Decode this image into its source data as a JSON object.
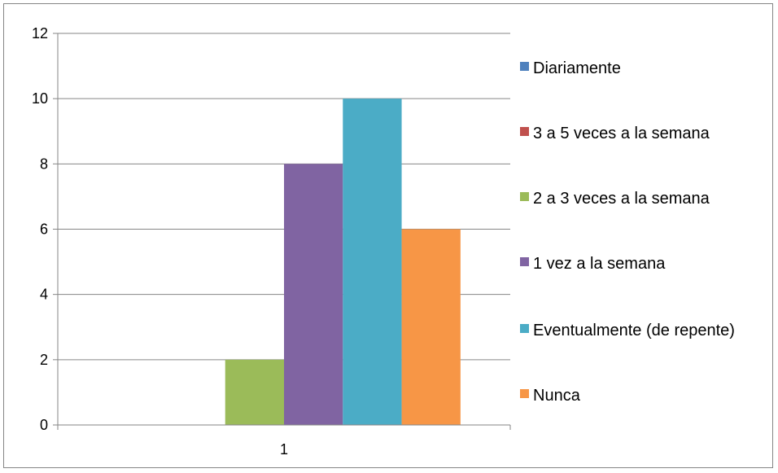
{
  "chart_data": {
    "type": "bar",
    "title": "",
    "xlabel": "",
    "ylabel": "",
    "categories": [
      "1"
    ],
    "ylim": [
      0,
      12
    ],
    "yticks": [
      0,
      2,
      4,
      6,
      8,
      10,
      12
    ],
    "grid": true,
    "legend_position": "right",
    "series": [
      {
        "name": "Diariamente",
        "values": [
          0
        ],
        "color": "#4F81BD"
      },
      {
        "name": "3 a 5 veces a la semana",
        "values": [
          0
        ],
        "color": "#C0504D"
      },
      {
        "name": "2 a 3 veces a la semana",
        "values": [
          2
        ],
        "color": "#9BBB59"
      },
      {
        "name": "1 vez a la semana",
        "values": [
          8
        ],
        "color": "#8064A2"
      },
      {
        "name": "Eventualmente (de repente)",
        "values": [
          10
        ],
        "color": "#4BACC6"
      },
      {
        "name": "Nunca",
        "values": [
          6
        ],
        "color": "#F79646"
      }
    ]
  }
}
